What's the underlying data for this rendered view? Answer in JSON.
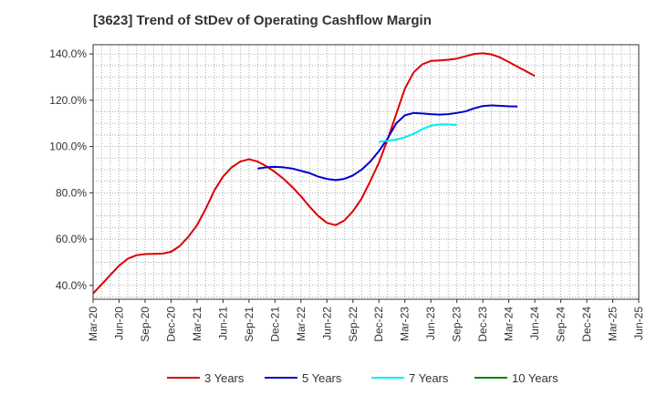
{
  "chart_data": {
    "type": "line",
    "title": "[3623]  Trend of StDev of Operating Cashflow Margin",
    "xlabel": "",
    "ylabel": "",
    "ylim": [
      34,
      144
    ],
    "yticks": [
      40,
      60,
      80,
      100,
      120,
      140
    ],
    "ytick_labels": [
      "40.0%",
      "60.0%",
      "80.0%",
      "100.0%",
      "120.0%",
      "140.0%"
    ],
    "x_tick_labels": [
      "Mar-20",
      "Jun-20",
      "Sep-20",
      "Dec-20",
      "Mar-21",
      "Jun-21",
      "Sep-21",
      "Dec-21",
      "Mar-22",
      "Jun-22",
      "Sep-22",
      "Dec-22",
      "Mar-23",
      "Jun-23",
      "Sep-23",
      "Dec-23",
      "Mar-24",
      "Jun-24",
      "Sep-24",
      "Dec-24",
      "Mar-25",
      "Jun-25"
    ],
    "grid": true,
    "legend_position": "bottom",
    "series": [
      {
        "name": "3 Years",
        "color": "#dd0000",
        "start_index": 0,
        "values": [
          36.5,
          40.5,
          44.5,
          48.5,
          51.5,
          53.0,
          53.5,
          53.6,
          53.7,
          54.5,
          57.0,
          61.0,
          66.0,
          73.0,
          81.0,
          87.0,
          91.0,
          93.5,
          94.5,
          93.5,
          91.5,
          89.0,
          86.0,
          82.5,
          78.5,
          74.0,
          70.0,
          67.0,
          66.0,
          68.0,
          72.0,
          77.5,
          85.0,
          93.0,
          103.0,
          114.0,
          125.0,
          132.0,
          135.5,
          137.0,
          137.2,
          137.5,
          138.0,
          139.0,
          140.0,
          140.3,
          139.8,
          138.5,
          136.5,
          134.5,
          132.5,
          130.5
        ]
      },
      {
        "name": "5 Years",
        "color": "#0000cc",
        "start_index": 19,
        "values": [
          90.5,
          91.0,
          91.2,
          91.0,
          90.5,
          89.5,
          88.5,
          87.0,
          86.0,
          85.5,
          86.0,
          87.5,
          90.0,
          93.5,
          98.0,
          103.5,
          110.0,
          113.5,
          114.5,
          114.3,
          114.0,
          113.8,
          114.0,
          114.5,
          115.2,
          116.5,
          117.5,
          117.8,
          117.6,
          117.4,
          117.3
        ]
      },
      {
        "name": "7 Years",
        "color": "#00eeee",
        "start_index": 33,
        "values": [
          102.0,
          102.5,
          103.0,
          104.0,
          105.5,
          107.5,
          109.0,
          109.5,
          109.5,
          109.3
        ]
      },
      {
        "name": "10 Years",
        "color": "#008000",
        "start_index": 0,
        "values": []
      }
    ]
  }
}
